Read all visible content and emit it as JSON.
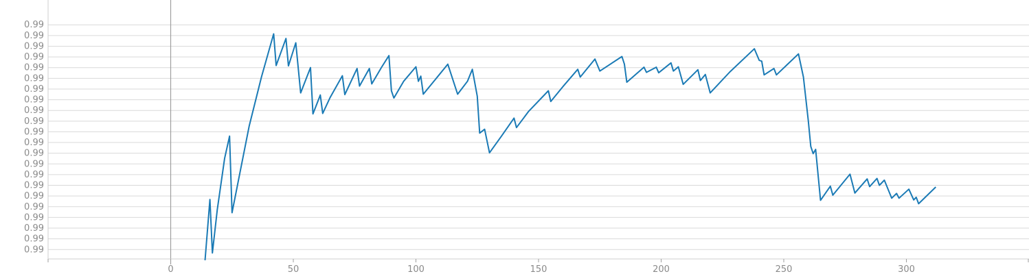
{
  "chart_data": {
    "type": "line",
    "title": "",
    "xlabel": "",
    "ylabel": "",
    "grid": true,
    "line_color": "#1a7ab5",
    "xlim": [
      -50,
      350
    ],
    "ylim": [
      0.98945,
      0.9955
    ],
    "x_ticks": [
      0,
      50,
      100,
      150,
      200,
      250,
      300
    ],
    "x_tick_labels": [
      "0",
      "50",
      "100",
      "150",
      "200",
      "250",
      "300"
    ],
    "y_ticks": [
      0.98967,
      0.98992,
      0.99017,
      0.99042,
      0.99067,
      0.99092,
      0.99117,
      0.99142,
      0.99167,
      0.99192,
      0.99217,
      0.99242,
      0.99267,
      0.99292,
      0.99317,
      0.99342,
      0.99367,
      0.99392,
      0.99417,
      0.99442,
      0.99467,
      0.99492
    ],
    "y_tick_labels": [
      "0.99",
      "0.99",
      "0.99",
      "0.99",
      "0.99",
      "0.99",
      "0.99",
      "0.99",
      "0.99",
      "0.99",
      "0.99",
      "0.99",
      "0.99",
      "0.99",
      "0.99",
      "0.99",
      "0.99",
      "0.99",
      "0.99",
      "0.99",
      "0.99",
      "0.99"
    ],
    "series": [
      {
        "x": [
          14,
          16,
          17,
          19,
          22,
          24,
          25,
          28,
          32,
          37,
          42,
          43,
          47,
          48,
          51,
          53,
          57,
          58,
          61,
          62,
          65,
          70,
          71,
          76,
          77,
          81,
          82,
          86,
          89,
          90,
          91,
          95,
          100,
          101,
          102,
          103,
          108,
          113,
          117,
          121,
          123,
          125,
          126,
          128,
          130,
          135,
          140,
          141,
          146,
          154,
          155,
          160,
          166,
          167,
          173,
          175,
          184,
          185,
          186,
          193,
          194,
          198,
          199,
          204,
          205,
          207,
          209,
          215,
          216,
          218,
          220,
          228,
          238,
          240,
          241,
          242,
          246,
          247,
          256,
          258,
          260,
          261,
          262,
          263,
          265,
          269,
          270,
          277,
          279,
          284,
          285,
          288,
          289,
          291,
          294,
          296,
          297,
          301,
          303,
          304,
          305,
          312
        ],
        "y": [
          0.98942,
          0.99084,
          0.98959,
          0.9906,
          0.9918,
          0.99232,
          0.99053,
          0.9914,
          0.99255,
          0.9937,
          0.99471,
          0.99397,
          0.9946,
          0.99396,
          0.9945,
          0.99333,
          0.99392,
          0.99284,
          0.99328,
          0.99285,
          0.99322,
          0.99373,
          0.99329,
          0.9939,
          0.99349,
          0.9939,
          0.99354,
          0.99393,
          0.9942,
          0.99338,
          0.99321,
          0.9936,
          0.99394,
          0.9936,
          0.99372,
          0.9933,
          0.99365,
          0.994,
          0.9933,
          0.9936,
          0.99388,
          0.99325,
          0.99239,
          0.99248,
          0.99193,
          0.99233,
          0.99274,
          0.99252,
          0.9929,
          0.99338,
          0.99313,
          0.99348,
          0.99388,
          0.9937,
          0.99412,
          0.99384,
          0.99418,
          0.994,
          0.99358,
          0.99393,
          0.99381,
          0.99393,
          0.9938,
          0.99403,
          0.99384,
          0.99394,
          0.99353,
          0.99387,
          0.99362,
          0.99376,
          0.99333,
          0.99382,
          0.99436,
          0.99409,
          0.99407,
          0.99375,
          0.9939,
          0.99375,
          0.99424,
          0.9937,
          0.99268,
          0.99208,
          0.99191,
          0.99201,
          0.99082,
          0.99115,
          0.99094,
          0.99143,
          0.99099,
          0.99132,
          0.99114,
          0.99133,
          0.99117,
          0.99129,
          0.99087,
          0.99098,
          0.99087,
          0.99108,
          0.99083,
          0.99089,
          0.99074,
          0.99113
        ]
      }
    ]
  }
}
